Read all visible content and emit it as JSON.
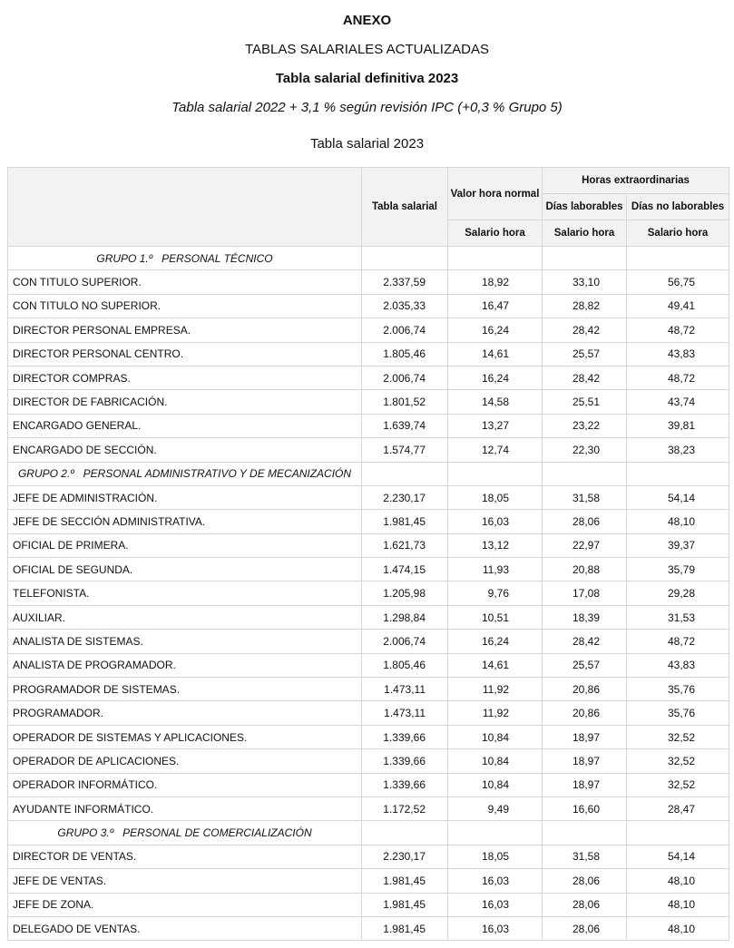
{
  "header": {
    "annex": "ANEXO",
    "subtitle": "TABLAS SALARIALES ACTUALIZADAS",
    "definitive": "Tabla salarial definitiva 2023",
    "ipc_note": "Tabla salarial 2022 + 3,1 % según revisión IPC (+0,3 % Grupo 5)",
    "caption": "Tabla salarial 2023"
  },
  "table": {
    "headers": {
      "tabla_salarial": "Tabla salarial",
      "valor_hora": "Valor hora normal",
      "horas_extra": "Horas extraordinarias",
      "dias_laborables": "Días laborables",
      "dias_no_laborables": "Días no laborables",
      "salario_hora": "Salario hora"
    },
    "rows": [
      {
        "group": "GRUPO 1.º   PERSONAL TÉCNICO"
      },
      {
        "cells": [
          "CON TITULO SUPERIOR.",
          "2.337,59",
          "18,92",
          "33,10",
          "56,75"
        ]
      },
      {
        "cells": [
          "CON TITULO NO SUPERIOR.",
          "2.035,33",
          "16,47",
          "28,82",
          "49,41"
        ]
      },
      {
        "cells": [
          "DIRECTOR PERSONAL EMPRESA.",
          "2.006,74",
          "16,24",
          "28,42",
          "48,72"
        ]
      },
      {
        "cells": [
          "DIRECTOR PERSONAL CENTRO.",
          "1.805,46",
          "14,61",
          "25,57",
          "43,83"
        ]
      },
      {
        "cells": [
          "DIRECTOR COMPRAS.",
          "2.006,74",
          "16,24",
          "28,42",
          "48,72"
        ]
      },
      {
        "cells": [
          "DIRECTOR DE FABRICACIÓN.",
          "1.801,52",
          "14,58",
          "25,51",
          "43,74"
        ]
      },
      {
        "cells": [
          "ENCARGADO GENERAL.",
          "1.639,74",
          "13,27",
          "23,22",
          "39,81"
        ]
      },
      {
        "cells": [
          "ENCARGADO DE SECCIÓN.",
          "1.574,77",
          "12,74",
          "22,30",
          "38,23"
        ]
      },
      {
        "group": "GRUPO 2.º   PERSONAL ADMINISTRATIVO Y DE MECANIZACIÓN"
      },
      {
        "cells": [
          "JEFE DE ADMINISTRACIÓN.",
          "2.230,17",
          "18,05",
          "31,58",
          "54,14"
        ]
      },
      {
        "cells": [
          "JEFE DE SECCIÓN ADMINISTRATIVA.",
          "1.981,45",
          "16,03",
          "28,06",
          "48,10"
        ]
      },
      {
        "cells": [
          "OFICIAL DE PRIMERA.",
          "1.621,73",
          "13,12",
          "22,97",
          "39,37"
        ]
      },
      {
        "cells": [
          "OFICIAL DE SEGUNDA.",
          "1.474,15",
          "11,93",
          "20,88",
          "35,79"
        ]
      },
      {
        "cells": [
          "TELEFONISTA.",
          "1.205,98",
          "9,76",
          "17,08",
          "29,28"
        ]
      },
      {
        "cells": [
          "AUXILIAR.",
          "1.298,84",
          "10,51",
          "18,39",
          "31,53"
        ]
      },
      {
        "cells": [
          "ANALISTA DE SISTEMAS.",
          "2.006,74",
          "16,24",
          "28,42",
          "48,72"
        ]
      },
      {
        "cells": [
          "ANALISTA DE PROGRAMADOR.",
          "1.805,46",
          "14,61",
          "25,57",
          "43,83"
        ]
      },
      {
        "cells": [
          "PROGRAMADOR DE SISTEMAS.",
          "1.473,11",
          "11,92",
          "20,86",
          "35,76"
        ]
      },
      {
        "cells": [
          "PROGRAMADOR.",
          "1.473,11",
          "11,92",
          "20,86",
          "35,76"
        ]
      },
      {
        "cells": [
          "OPERADOR DE SISTEMAS Y APLICACIONES.",
          "1.339,66",
          "10,84",
          "18,97",
          "32,52"
        ]
      },
      {
        "cells": [
          "OPERADOR DE APLICACIONES.",
          "1.339,66",
          "10,84",
          "18,97",
          "32,52"
        ]
      },
      {
        "cells": [
          "OPERADOR INFORMÁTICO.",
          "1.339,66",
          "10,84",
          "18,97",
          "32,52"
        ]
      },
      {
        "cells": [
          "AYUDANTE INFORMÁTICO.",
          "1.172,52",
          "9,49",
          "16,60",
          "28,47"
        ]
      },
      {
        "group": "GRUPO 3.º   PERSONAL DE COMERCIALIZACIÓN"
      },
      {
        "cells": [
          "DIRECTOR DE VENTAS.",
          "2.230,17",
          "18,05",
          "31,58",
          "54,14"
        ]
      },
      {
        "cells": [
          "JEFE DE VENTAS.",
          "1.981,45",
          "16,03",
          "28,06",
          "48,10"
        ]
      },
      {
        "cells": [
          "JEFE DE ZONA.",
          "1.981,45",
          "16,03",
          "28,06",
          "48,10"
        ]
      },
      {
        "cells": [
          "DELEGADO DE VENTAS.",
          "1.981,45",
          "16,03",
          "28,06",
          "48,10"
        ]
      }
    ]
  }
}
